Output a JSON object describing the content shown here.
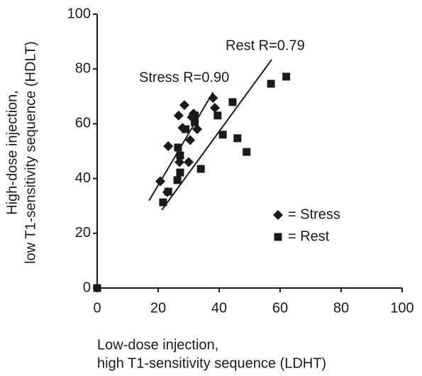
{
  "chart_data": {
    "type": "scatter",
    "x_label": [
      "Low-dose injection,",
      "high T1-sensitivity sequence (LDHT)"
    ],
    "y_label": [
      "High-dose injection,",
      "low T1-sensitivity sequence (HDLT)"
    ],
    "xlim": [
      0,
      100
    ],
    "ylim": [
      0,
      100
    ],
    "xticks": [
      0,
      20,
      40,
      60,
      80,
      100
    ],
    "yticks": [
      0,
      20,
      40,
      60,
      80,
      100
    ],
    "grid": false,
    "series": [
      {
        "name": "= Stress",
        "marker": "diamond",
        "color": "#1a1a1a",
        "x": [
          20.7,
          23.3,
          26.7,
          28.6,
          27,
          30,
          30.5,
          31,
          32.8,
          31.6,
          38,
          38.6,
          28,
          23
        ],
        "values": [
          39,
          51.8,
          63,
          66.8,
          46,
          46,
          54,
          62.4,
          58,
          63.7,
          69.4,
          65.8,
          58.5,
          35
        ]
      },
      {
        "name": "= Rest",
        "marker": "square",
        "color": "#1a1a1a",
        "x": [
          0,
          21.6,
          23.3,
          26.5,
          27.2,
          26.3,
          27.2,
          29,
          32,
          32,
          34,
          39.5,
          41.2,
          44.4,
          46,
          49,
          57,
          62
        ],
        "values": [
          0,
          31.3,
          35.2,
          51.3,
          42.2,
          39.4,
          48.4,
          58,
          60.6,
          63,
          43.5,
          63,
          56,
          67.9,
          54.7,
          49.7,
          74.6,
          77.2
        ]
      }
    ],
    "trendlines": [
      {
        "label": "Stress R=0.90",
        "x": [
          17,
          38
        ],
        "values": [
          31.9,
          71.5
        ]
      },
      {
        "label": "Rest R=0.79",
        "x": [
          21.2,
          57.2
        ],
        "values": [
          28.5,
          83.4
        ]
      }
    ]
  }
}
